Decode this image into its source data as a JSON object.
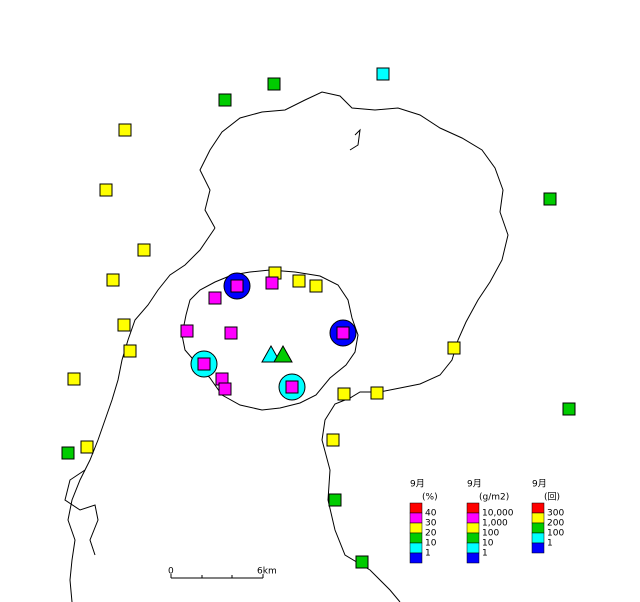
{
  "legends": [
    {
      "title": "9月",
      "unit": "(%)",
      "labels": [
        "40",
        "30",
        "20",
        "10",
        "1"
      ]
    },
    {
      "title": "9月",
      "unit": "(g/m2)",
      "labels": [
        "10,000",
        "1,000",
        "100",
        "10",
        "1"
      ]
    },
    {
      "title": "9月",
      "unit": "(回)",
      "labels": [
        "300",
        "200",
        "100",
        "1"
      ]
    }
  ],
  "scale": {
    "start": "0",
    "end": "6km"
  }
}
